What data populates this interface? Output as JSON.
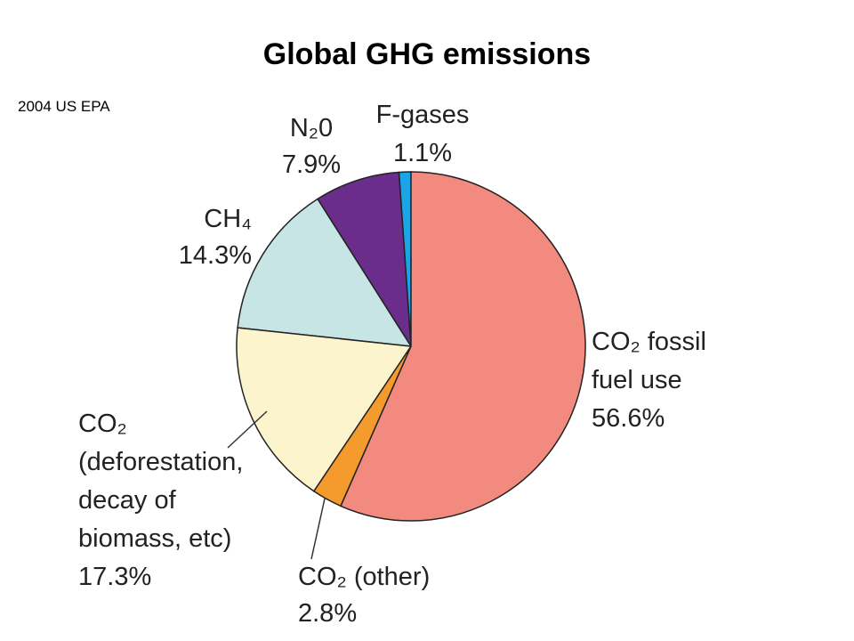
{
  "chart_data": {
    "type": "pie",
    "title": "Global GHG emissions",
    "subtitle": "2004 US EPA",
    "categories": [
      "CO₂ fossil fuel use",
      "CO₂ (other)",
      "CO₂ (deforestation, decay of biomass, etc)",
      "CH₄",
      "N₂0",
      "F-gases"
    ],
    "values": [
      56.6,
      2.8,
      17.3,
      14.3,
      7.9,
      1.1
    ],
    "value_labels": [
      "56.6%",
      "2.8%",
      "17.3%",
      "14.3%",
      "7.9%",
      "1.1%"
    ],
    "colors": [
      "#f28a7f",
      "#f59a2c",
      "#fcf4cd",
      "#c8e5e6",
      "#6b2d8c",
      "#1ba4e6"
    ]
  }
}
